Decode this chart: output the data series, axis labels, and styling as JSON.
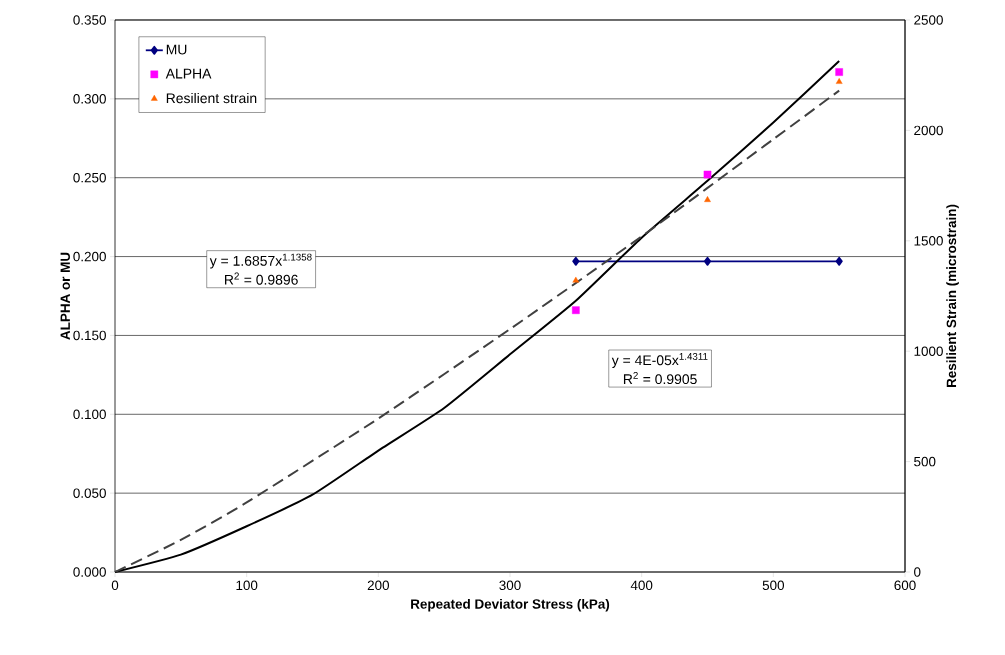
{
  "chart_data": {
    "type": "scatter",
    "xlabel": "Repeated Deviator Stress (kPa)",
    "ylabel": "ALPHA or MU",
    "y2label": "Resilient Strain (microstrain)",
    "xlim": [
      0,
      600
    ],
    "xticks": [
      0,
      100,
      200,
      300,
      400,
      500,
      600
    ],
    "ylim": [
      0,
      0.35
    ],
    "yticks": [
      {
        "value": 0,
        "label": "0.000"
      },
      {
        "value": 0.05,
        "label": "0.050"
      },
      {
        "value": 0.1,
        "label": "0.100"
      },
      {
        "value": 0.15,
        "label": "0.150"
      },
      {
        "value": 0.2,
        "label": "0.200"
      },
      {
        "value": 0.25,
        "label": "0.250"
      },
      {
        "value": 0.3,
        "label": "0.300"
      },
      {
        "value": 0.35,
        "label": "0.350"
      }
    ],
    "y2lim": [
      0,
      2500
    ],
    "y2ticks": [
      0,
      500,
      1000,
      1500,
      2000,
      2500
    ],
    "grid": "y",
    "legend": "top left",
    "series": [
      {
        "name": "MU",
        "type": "line",
        "color": "#000080",
        "marker": "diamond",
        "x": [
          350,
          450,
          550
        ],
        "values": [
          0.197,
          0.197,
          0.197
        ]
      },
      {
        "name": "ALPHA",
        "color": "#ff00ff",
        "marker": "square",
        "x": [
          350,
          450,
          550
        ],
        "values": [
          0.166,
          0.252,
          0.317
        ]
      },
      {
        "name": "Resilient strain",
        "color": "#ff6600",
        "marker": "triangle",
        "axis": "y2",
        "x": [
          350,
          450,
          550
        ],
        "values": [
          1320,
          1685,
          2220
        ]
      },
      {
        "type": "line",
        "color": "#000000",
        "marker": "none",
        "line_style": "solid",
        "x": [
          0,
          50,
          100,
          150,
          200,
          250,
          300,
          350,
          400,
          450,
          500,
          550
        ],
        "values": [
          0,
          0.011,
          0.029,
          0.049,
          0.077,
          0.104,
          0.138,
          0.172,
          0.212,
          0.248,
          0.285,
          0.324
        ]
      },
      {
        "type": "line",
        "color": "#404040",
        "marker": "none",
        "line_style": "dashed",
        "axis": "y2",
        "x": [
          0,
          50,
          100,
          200,
          300,
          400,
          500,
          550
        ],
        "values": [
          0,
          145,
          315,
          695,
          1100,
          1520,
          1960,
          2180
        ]
      }
    ],
    "annotations": [
      "y = 1.6857x$^{1.1358}$",
      "R$^{2}$ = 0.9896",
      "y = 4E-05x$^{1.4311}$",
      "R$^{2}$ = 0.9905"
    ]
  }
}
